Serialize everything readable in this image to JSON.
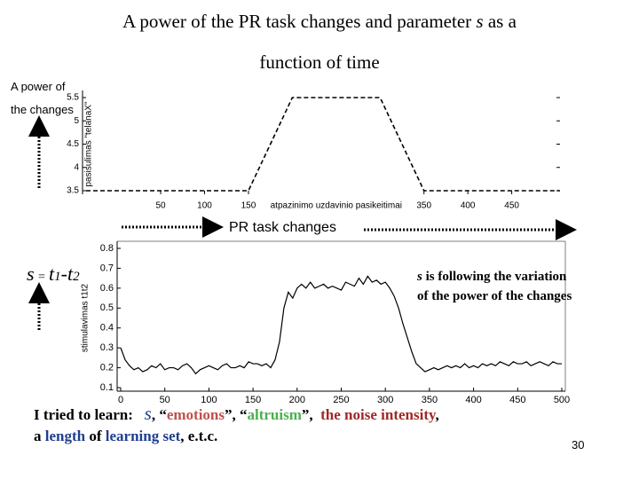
{
  "title": [
    "A power of the PR task changes and parameter ",
    "s",
    " as a",
    "function of time"
  ],
  "left_label": [
    "A power of",
    "the changes"
  ],
  "middle_label": "PR task changes",
  "formula": [
    "s",
    " = ",
    "t",
    "1",
    "-t",
    "2"
  ],
  "note": [
    "s",
    " is following the variation",
    "of the power of the changes"
  ],
  "footer": [
    "I tried to learn:",
    "s",
    ", “",
    "emotions",
    "”, “",
    "altruism",
    "”,",
    "the noise intensity",
    ",",
    "a ",
    "length",
    " of ",
    "learning set",
    ", e.t.c."
  ],
  "page_number": "30",
  "chart_data": [
    {
      "type": "line",
      "line_style": "dashed",
      "color": "#000000",
      "x_label": "atpazinimo uzdavinio pasikeitimai",
      "y_label": "pasisulimas \"telanaX\"",
      "x": [
        -35,
        150,
        200,
        300,
        350,
        505
      ],
      "values": [
        3.5,
        3.5,
        5.5,
        5.5,
        3.5,
        3.5
      ],
      "xlim": [
        -35,
        505
      ],
      "ylim": [
        3.5,
        5.5
      ],
      "xticks": [
        50,
        100,
        150,
        350,
        400,
        450
      ],
      "yticks": [
        3.5,
        4,
        4.5,
        5,
        5.5
      ]
    },
    {
      "type": "line",
      "line_style": "solid",
      "color": "#000000",
      "y_label": "stimulavimas t1t2",
      "x": [
        0,
        5,
        10,
        15,
        20,
        25,
        30,
        35,
        40,
        45,
        50,
        55,
        60,
        65,
        70,
        75,
        80,
        85,
        90,
        95,
        100,
        105,
        110,
        115,
        120,
        125,
        130,
        135,
        140,
        145,
        150,
        155,
        160,
        165,
        170,
        175,
        180,
        185,
        190,
        195,
        200,
        205,
        210,
        215,
        220,
        225,
        230,
        235,
        240,
        245,
        250,
        255,
        260,
        265,
        270,
        275,
        280,
        285,
        290,
        295,
        300,
        305,
        310,
        315,
        320,
        325,
        330,
        335,
        340,
        345,
        350,
        355,
        360,
        365,
        370,
        375,
        380,
        385,
        390,
        395,
        400,
        405,
        410,
        415,
        420,
        425,
        430,
        435,
        440,
        445,
        450,
        455,
        460,
        465,
        470,
        475,
        480,
        485,
        490,
        495,
        500
      ],
      "values": [
        0.3,
        0.24,
        0.21,
        0.19,
        0.2,
        0.18,
        0.19,
        0.21,
        0.2,
        0.22,
        0.19,
        0.2,
        0.2,
        0.19,
        0.21,
        0.22,
        0.2,
        0.17,
        0.19,
        0.2,
        0.21,
        0.2,
        0.19,
        0.21,
        0.22,
        0.2,
        0.2,
        0.21,
        0.2,
        0.23,
        0.22,
        0.22,
        0.21,
        0.22,
        0.2,
        0.24,
        0.33,
        0.5,
        0.58,
        0.55,
        0.6,
        0.62,
        0.6,
        0.63,
        0.6,
        0.61,
        0.62,
        0.6,
        0.61,
        0.6,
        0.59,
        0.63,
        0.62,
        0.61,
        0.65,
        0.62,
        0.66,
        0.63,
        0.64,
        0.62,
        0.63,
        0.6,
        0.56,
        0.5,
        0.42,
        0.35,
        0.28,
        0.22,
        0.2,
        0.18,
        0.19,
        0.2,
        0.19,
        0.2,
        0.21,
        0.2,
        0.21,
        0.2,
        0.22,
        0.2,
        0.21,
        0.2,
        0.22,
        0.21,
        0.22,
        0.21,
        0.23,
        0.22,
        0.21,
        0.23,
        0.22,
        0.22,
        0.23,
        0.21,
        0.22,
        0.23,
        0.22,
        0.21,
        0.23,
        0.22,
        0.22
      ],
      "xlim": [
        0,
        500
      ],
      "ylim": [
        0.1,
        0.8
      ],
      "xticks": [
        0,
        50,
        100,
        150,
        200,
        250,
        300,
        350,
        400,
        450,
        500
      ],
      "yticks": [
        0.1,
        0.2,
        0.3,
        0.4,
        0.5,
        0.6,
        0.7,
        0.8
      ]
    }
  ]
}
